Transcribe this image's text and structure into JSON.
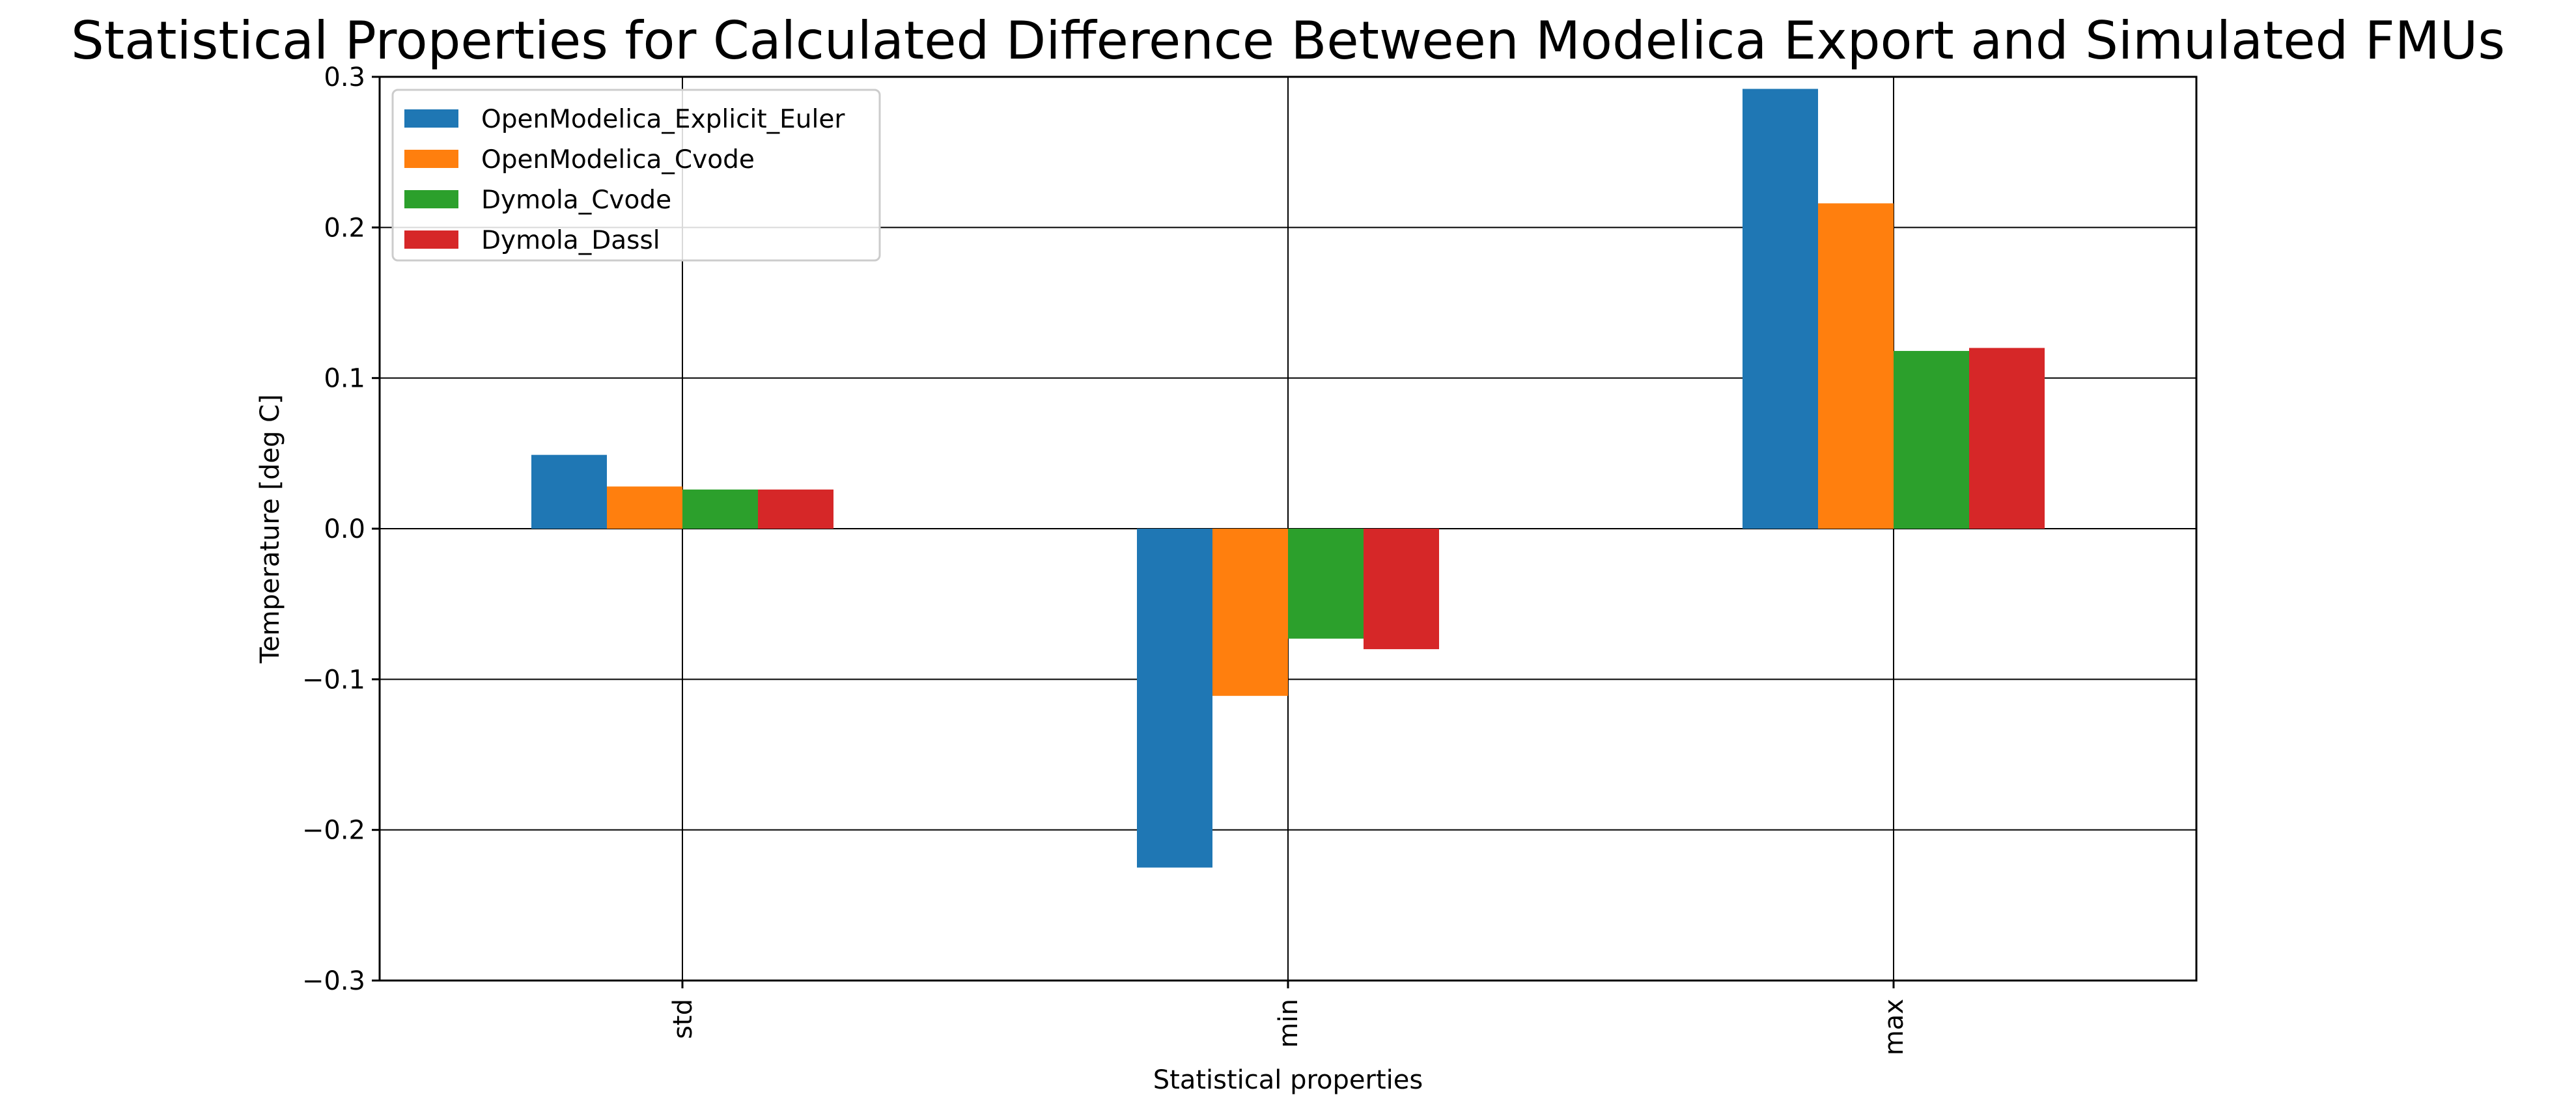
{
  "chart_data": {
    "type": "bar",
    "title": "Statistical Properties for Calculated Difference Between Modelica Export and Simulated FMUs",
    "xlabel": "Statistical properties",
    "ylabel": "Temperature [deg C]",
    "categories": [
      "std",
      "min",
      "max"
    ],
    "ylim": [
      -0.3,
      0.3
    ],
    "yticks": [
      -0.3,
      -0.2,
      -0.1,
      0.0,
      0.1,
      0.2,
      0.3
    ],
    "ytick_labels": [
      "−0.3",
      "−0.2",
      "−0.1",
      "0.0",
      "0.1",
      "0.2",
      "0.3"
    ],
    "grid": true,
    "legend_position": "top-left",
    "series": [
      {
        "name": "OpenModelica_Explicit_Euler",
        "color": "#1f77b4",
        "values": [
          0.049,
          -0.225,
          0.292
        ]
      },
      {
        "name": "OpenModelica_Cvode",
        "color": "#ff7f0e",
        "values": [
          0.028,
          -0.111,
          0.216
        ]
      },
      {
        "name": "Dymola_Cvode",
        "color": "#2ca02c",
        "values": [
          0.026,
          -0.073,
          0.118
        ]
      },
      {
        "name": "Dymola_Dassl",
        "color": "#d62728",
        "values": [
          0.026,
          -0.08,
          0.12
        ]
      }
    ]
  }
}
